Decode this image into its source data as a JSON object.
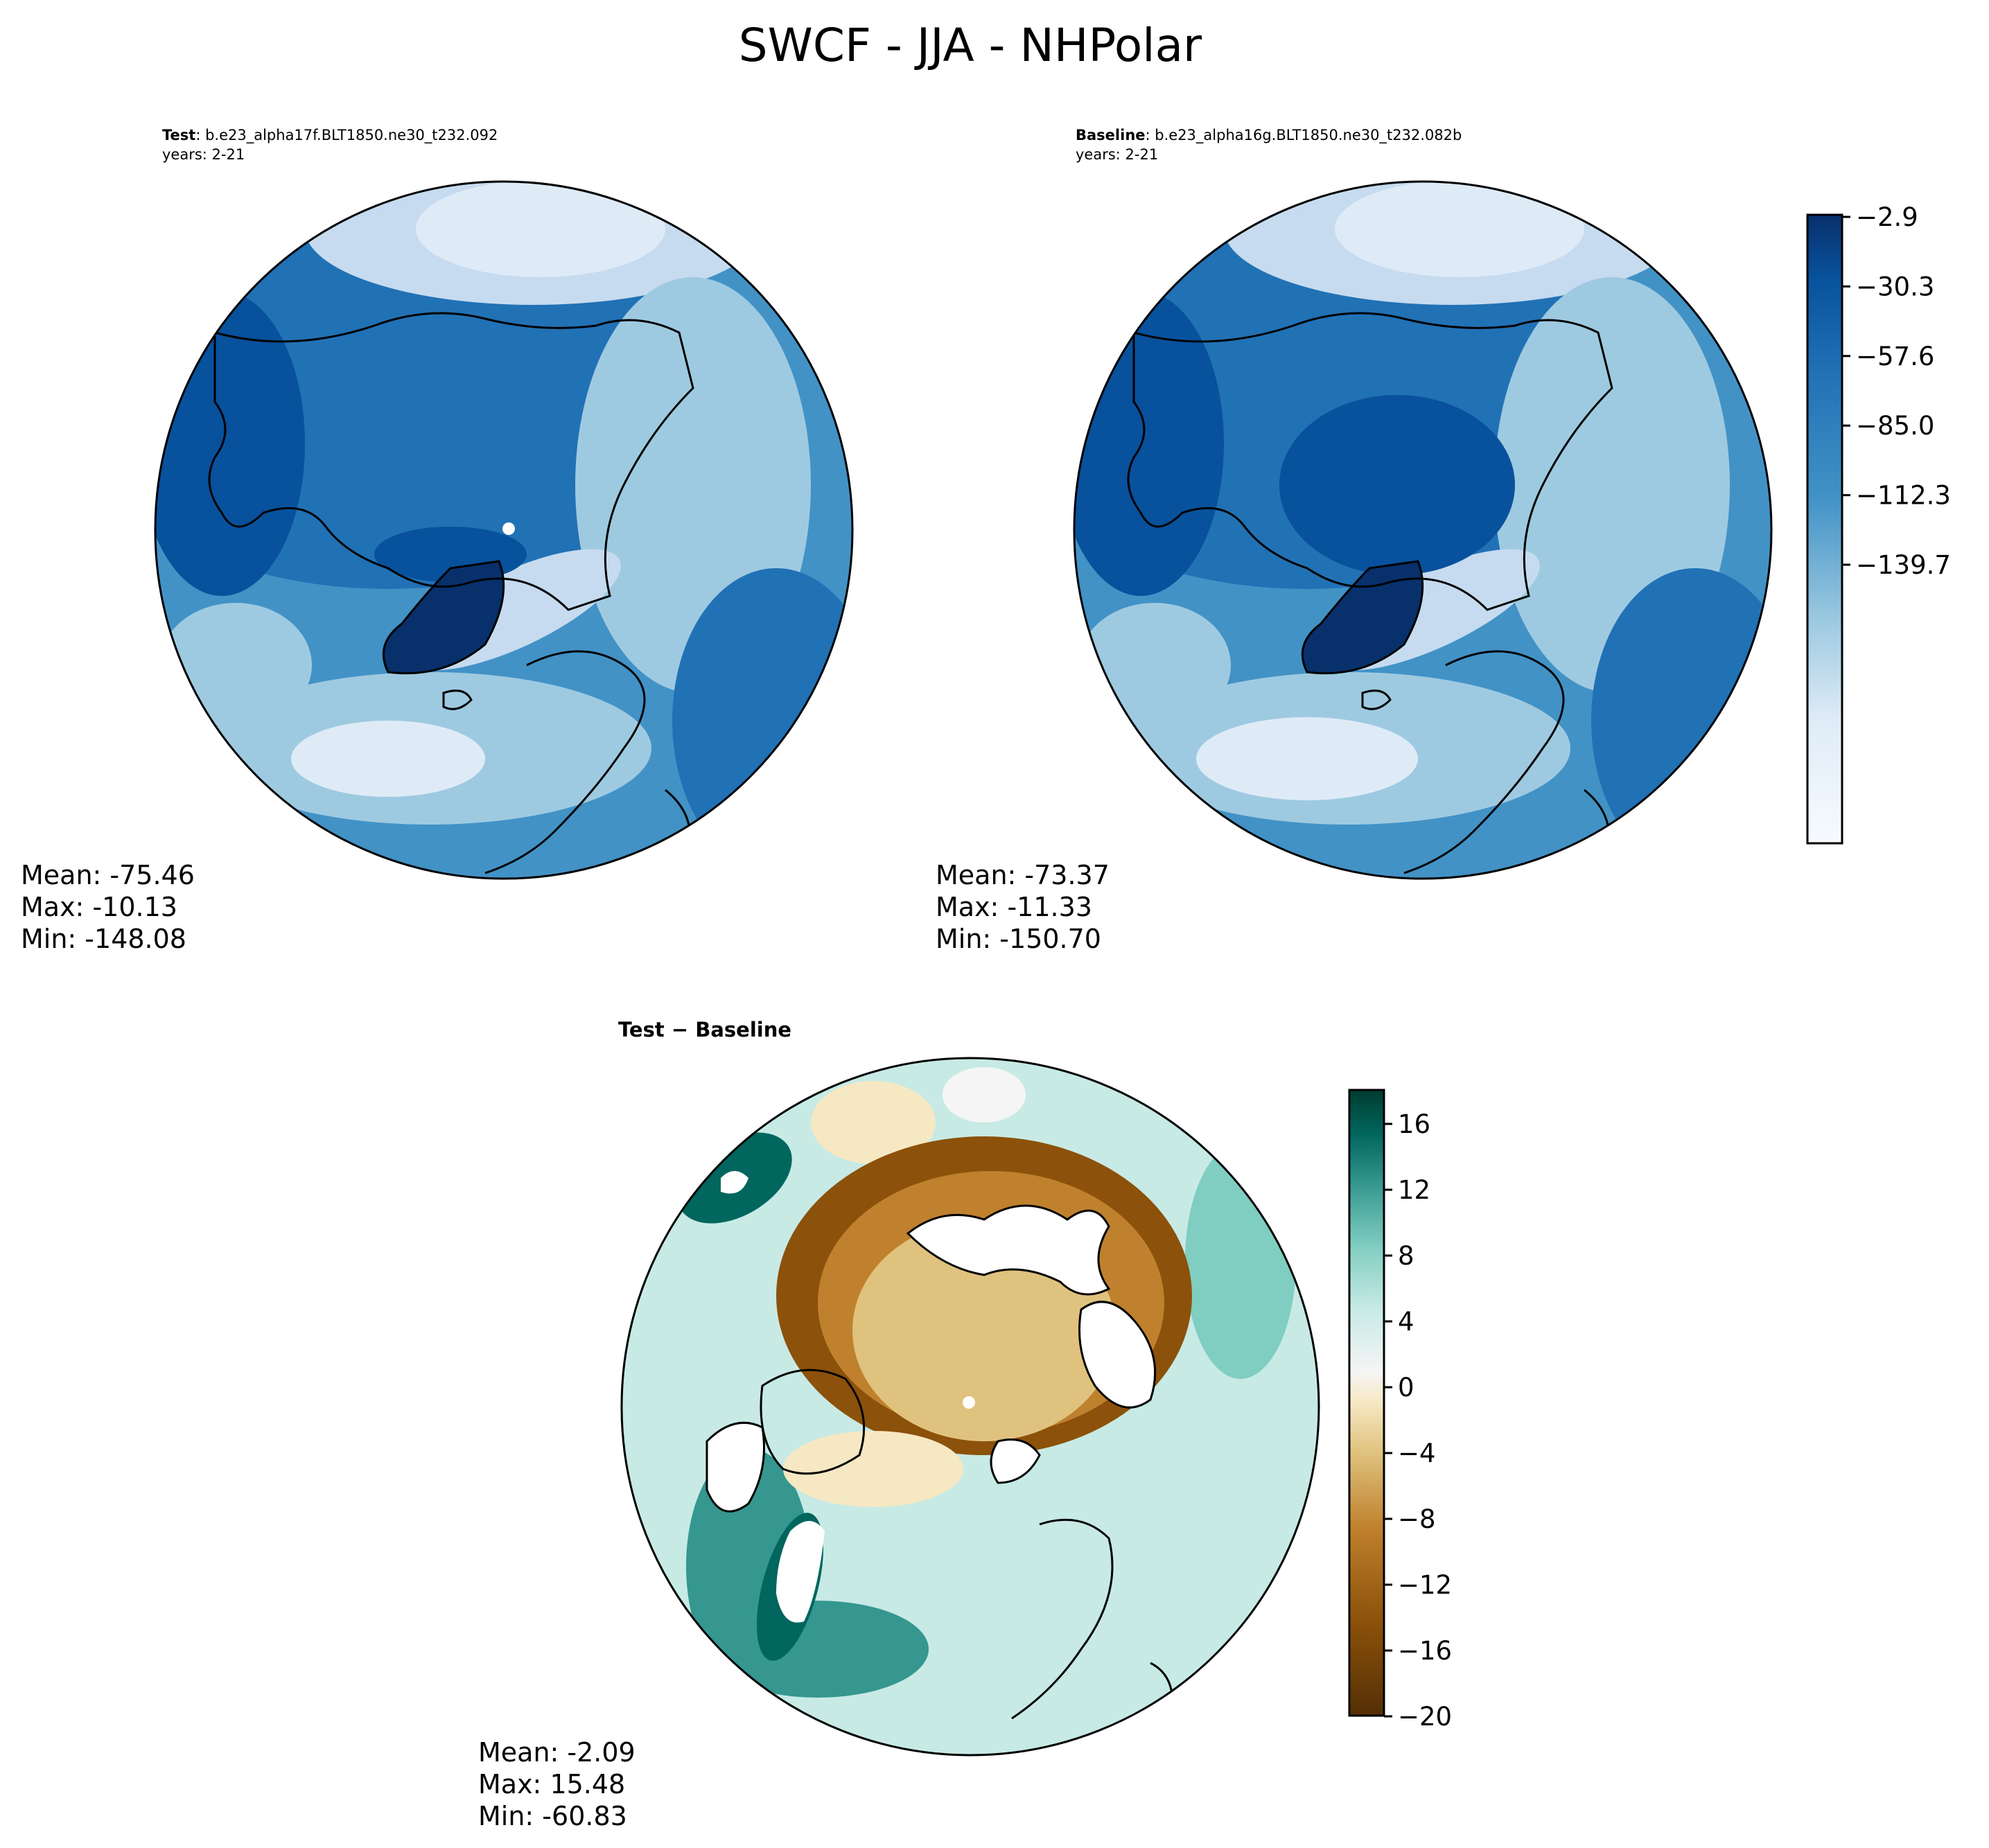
{
  "figure": {
    "title": "SWCF - JJA - NHPolar"
  },
  "panels": {
    "test": {
      "label_bold": "Test",
      "label_rest": ": b.e23_alpha17f.BLT1850.ne30_t232.092",
      "years": "years: 2-21",
      "stats": {
        "mean": "Mean: -75.46",
        "max": "Max: -10.13",
        "min": "Min: -148.08"
      }
    },
    "baseline": {
      "label_bold": "Baseline",
      "label_rest": ": b.e23_alpha16g.BLT1850.ne30_t232.082b",
      "years": "years: 2-21",
      "stats": {
        "mean": "Mean: -73.37",
        "max": "Max: -11.33",
        "min": "Min: -150.70"
      }
    },
    "diff": {
      "title": "Test − Baseline",
      "stats": {
        "mean": "Mean: -2.09",
        "max": "Max: 15.48",
        "min": "Min: -60.83"
      }
    }
  },
  "chart_data": [
    {
      "type": "heatmap",
      "name": "Test",
      "projection": "north polar stereographic",
      "stats": {
        "mean": -75.46,
        "max": -10.13,
        "min": -148.08
      },
      "colormap": "Blues",
      "colorbar": {
        "ticks": [
          "−2.9",
          "−30.3",
          "−57.6",
          "−85.0",
          "−112.3",
          "−139.7"
        ],
        "range": [
          -153.5,
          -2.9
        ],
        "levels": 11
      }
    },
    {
      "type": "heatmap",
      "name": "Baseline",
      "projection": "north polar stereographic",
      "stats": {
        "mean": -73.37,
        "max": -11.33,
        "min": -150.7
      },
      "colormap": "Blues"
    },
    {
      "type": "heatmap",
      "name": "Test − Baseline",
      "projection": "north polar stereographic",
      "stats": {
        "mean": -2.09,
        "max": 15.48,
        "min": -60.83
      },
      "colormap": "BrBG",
      "colorbar": {
        "ticks": [
          "16",
          "12",
          "8",
          "4",
          "0",
          "−4",
          "−8",
          "−12",
          "−16",
          "−20"
        ],
        "range": [
          -20,
          18
        ],
        "levels": 19
      }
    }
  ],
  "colors": {
    "blues": [
      "#f7fbff",
      "#deebf7",
      "#c6dbef",
      "#9ecae1",
      "#6baed6",
      "#4292c6",
      "#2171b5",
      "#08519c",
      "#08306b"
    ],
    "brbg": [
      "#543005",
      "#8c510a",
      "#bf812d",
      "#dfc27d",
      "#f6e8c3",
      "#f5f5f5",
      "#c7eae5",
      "#80cdc1",
      "#35978f",
      "#01665e",
      "#003c30"
    ]
  }
}
